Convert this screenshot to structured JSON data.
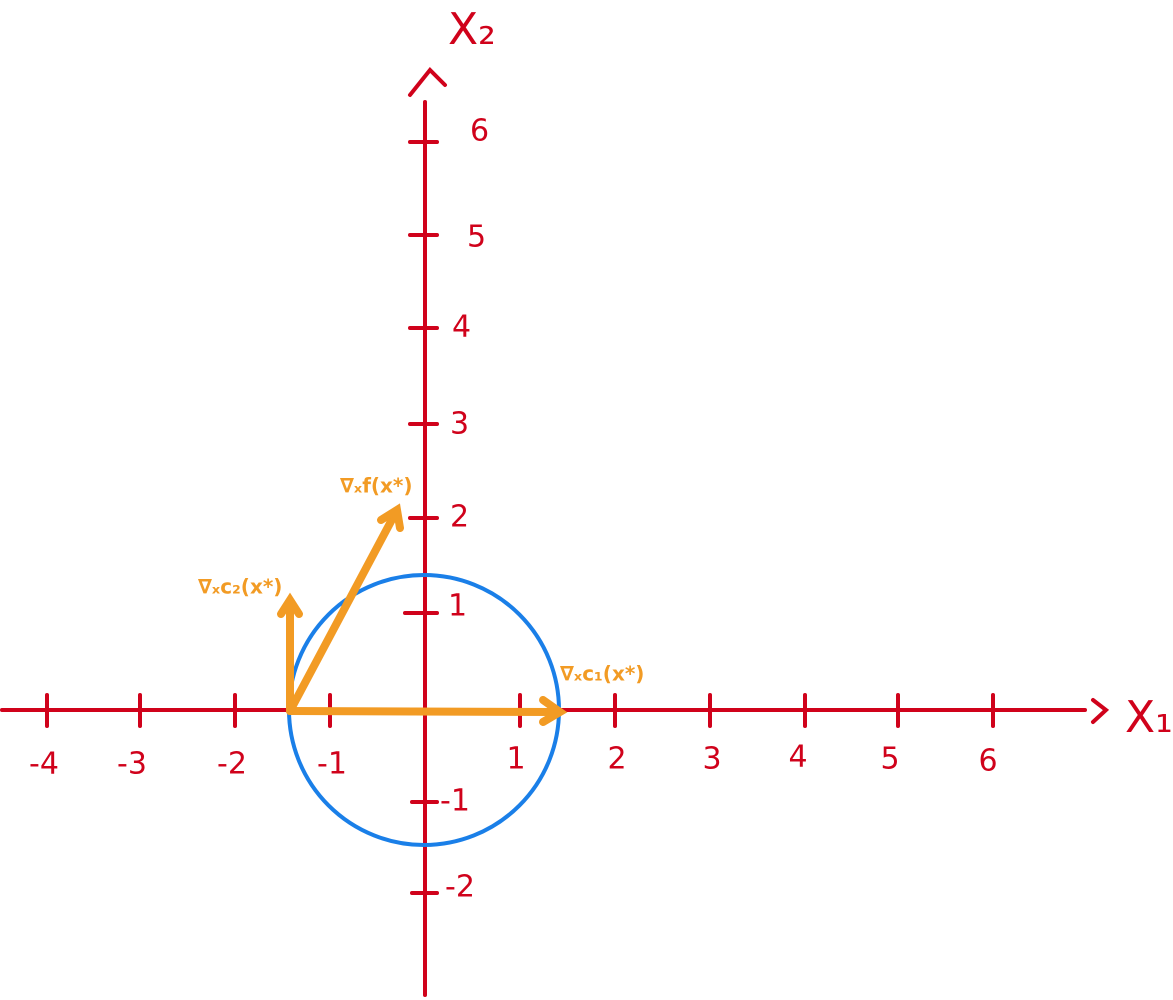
{
  "axes": {
    "x_label": "X₁",
    "y_label": "X₂",
    "x_ticks": [
      "-4",
      "-3",
      "-2",
      "-1",
      "1",
      "2",
      "3",
      "4",
      "5",
      "6"
    ],
    "y_ticks": [
      "6",
      "5",
      "4",
      "3",
      "2",
      "1",
      "-1",
      "-2"
    ]
  },
  "vectors": {
    "grad_f": "∇ₓf(x*)",
    "grad_c2": "∇ₓc₂(x*)",
    "grad_c1": "∇ₓc₁(x*)"
  }
}
